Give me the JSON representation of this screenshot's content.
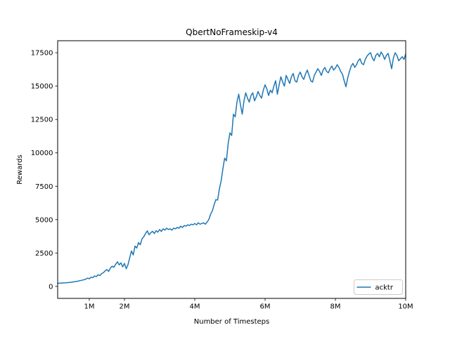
{
  "figure": {
    "background_color": "#ffffff",
    "spine_color": "#000000",
    "legend_border_color": "#cccccc",
    "legend_background_color": "#ffffff"
  },
  "chart_data": {
    "type": "line",
    "title": "QbertNoFrameskip-v4",
    "xlabel": "Number of Timesteps",
    "ylabel": "Rewards",
    "x_unit": "millions of timesteps",
    "xlim": [
      0.1,
      10
    ],
    "ylim": [
      -900,
      18400
    ],
    "grid": false,
    "xticks": [
      {
        "value": 1,
        "label": "1M"
      },
      {
        "value": 2,
        "label": "2M"
      },
      {
        "value": 4,
        "label": "4M"
      },
      {
        "value": 6,
        "label": "6M"
      },
      {
        "value": 8,
        "label": "8M"
      },
      {
        "value": 10,
        "label": "10M"
      }
    ],
    "yticks": [
      {
        "value": 0,
        "label": "0"
      },
      {
        "value": 2500,
        "label": "2500"
      },
      {
        "value": 5000,
        "label": "5000"
      },
      {
        "value": 7500,
        "label": "7500"
      },
      {
        "value": 10000,
        "label": "10000"
      },
      {
        "value": 12500,
        "label": "12500"
      },
      {
        "value": 15000,
        "label": "15000"
      },
      {
        "value": 17500,
        "label": "17500"
      }
    ],
    "legend": {
      "position": "lower right",
      "entries": [
        {
          "label": "acktr",
          "color": "#1f77b4"
        }
      ]
    },
    "series": [
      {
        "name": "acktr",
        "color": "#1f77b4",
        "points": [
          [
            0.1,
            230
          ],
          [
            0.18,
            240
          ],
          [
            0.26,
            255
          ],
          [
            0.34,
            270
          ],
          [
            0.42,
            290
          ],
          [
            0.5,
            315
          ],
          [
            0.58,
            345
          ],
          [
            0.66,
            385
          ],
          [
            0.74,
            430
          ],
          [
            0.82,
            480
          ],
          [
            0.9,
            540
          ],
          [
            0.95,
            620
          ],
          [
            1.0,
            570
          ],
          [
            1.05,
            690
          ],
          [
            1.1,
            650
          ],
          [
            1.15,
            780
          ],
          [
            1.2,
            730
          ],
          [
            1.25,
            870
          ],
          [
            1.3,
            810
          ],
          [
            1.35,
            960
          ],
          [
            1.4,
            1020
          ],
          [
            1.45,
            1160
          ],
          [
            1.5,
            1260
          ],
          [
            1.55,
            1120
          ],
          [
            1.6,
            1370
          ],
          [
            1.65,
            1510
          ],
          [
            1.7,
            1430
          ],
          [
            1.75,
            1660
          ],
          [
            1.8,
            1840
          ],
          [
            1.85,
            1610
          ],
          [
            1.9,
            1760
          ],
          [
            1.95,
            1460
          ],
          [
            2.0,
            1720
          ],
          [
            2.05,
            1320
          ],
          [
            2.1,
            1620
          ],
          [
            2.15,
            2150
          ],
          [
            2.2,
            2650
          ],
          [
            2.25,
            2350
          ],
          [
            2.3,
            3020
          ],
          [
            2.35,
            2870
          ],
          [
            2.4,
            3280
          ],
          [
            2.45,
            3120
          ],
          [
            2.5,
            3560
          ],
          [
            2.55,
            3720
          ],
          [
            2.6,
            3960
          ],
          [
            2.65,
            4160
          ],
          [
            2.7,
            3870
          ],
          [
            2.75,
            4020
          ],
          [
            2.8,
            4120
          ],
          [
            2.85,
            3960
          ],
          [
            2.9,
            4170
          ],
          [
            2.95,
            4060
          ],
          [
            3.0,
            4260
          ],
          [
            3.05,
            4110
          ],
          [
            3.1,
            4310
          ],
          [
            3.15,
            4210
          ],
          [
            3.2,
            4360
          ],
          [
            3.25,
            4260
          ],
          [
            3.3,
            4310
          ],
          [
            3.35,
            4210
          ],
          [
            3.4,
            4360
          ],
          [
            3.45,
            4310
          ],
          [
            3.5,
            4410
          ],
          [
            3.55,
            4360
          ],
          [
            3.6,
            4510
          ],
          [
            3.65,
            4410
          ],
          [
            3.7,
            4560
          ],
          [
            3.75,
            4510
          ],
          [
            3.8,
            4610
          ],
          [
            3.85,
            4560
          ],
          [
            3.9,
            4660
          ],
          [
            3.95,
            4610
          ],
          [
            4.0,
            4710
          ],
          [
            4.05,
            4610
          ],
          [
            4.1,
            4760
          ],
          [
            4.15,
            4660
          ],
          [
            4.2,
            4710
          ],
          [
            4.25,
            4760
          ],
          [
            4.3,
            4660
          ],
          [
            4.35,
            4810
          ],
          [
            4.4,
            5010
          ],
          [
            4.45,
            5400
          ],
          [
            4.5,
            5660
          ],
          [
            4.55,
            6110
          ],
          [
            4.6,
            6500
          ],
          [
            4.65,
            6460
          ],
          [
            4.7,
            7300
          ],
          [
            4.75,
            7900
          ],
          [
            4.8,
            8800
          ],
          [
            4.85,
            9600
          ],
          [
            4.9,
            9400
          ],
          [
            4.95,
            10700
          ],
          [
            5.0,
            11500
          ],
          [
            5.05,
            11300
          ],
          [
            5.1,
            12900
          ],
          [
            5.15,
            12700
          ],
          [
            5.2,
            13800
          ],
          [
            5.25,
            14400
          ],
          [
            5.3,
            13600
          ],
          [
            5.35,
            12900
          ],
          [
            5.4,
            13900
          ],
          [
            5.45,
            14500
          ],
          [
            5.5,
            14100
          ],
          [
            5.55,
            13800
          ],
          [
            5.6,
            14300
          ],
          [
            5.65,
            14500
          ],
          [
            5.7,
            13900
          ],
          [
            5.75,
            14200
          ],
          [
            5.8,
            14600
          ],
          [
            5.85,
            14300
          ],
          [
            5.9,
            14100
          ],
          [
            5.95,
            14700
          ],
          [
            6.0,
            15100
          ],
          [
            6.05,
            14800
          ],
          [
            6.1,
            14300
          ],
          [
            6.15,
            14700
          ],
          [
            6.2,
            14500
          ],
          [
            6.25,
            15000
          ],
          [
            6.3,
            15400
          ],
          [
            6.35,
            14400
          ],
          [
            6.4,
            15100
          ],
          [
            6.45,
            15700
          ],
          [
            6.5,
            15300
          ],
          [
            6.55,
            15000
          ],
          [
            6.6,
            15800
          ],
          [
            6.65,
            15500
          ],
          [
            6.7,
            15200
          ],
          [
            6.75,
            15700
          ],
          [
            6.8,
            15950
          ],
          [
            6.85,
            15400
          ],
          [
            6.9,
            15300
          ],
          [
            6.95,
            15800
          ],
          [
            7.0,
            16050
          ],
          [
            7.05,
            15700
          ],
          [
            7.1,
            15500
          ],
          [
            7.15,
            15900
          ],
          [
            7.2,
            16200
          ],
          [
            7.25,
            15800
          ],
          [
            7.3,
            15400
          ],
          [
            7.35,
            15300
          ],
          [
            7.4,
            15800
          ],
          [
            7.45,
            16050
          ],
          [
            7.5,
            16300
          ],
          [
            7.55,
            16100
          ],
          [
            7.6,
            15800
          ],
          [
            7.65,
            16200
          ],
          [
            7.7,
            16400
          ],
          [
            7.75,
            16100
          ],
          [
            7.8,
            16000
          ],
          [
            7.85,
            16300
          ],
          [
            7.9,
            16500
          ],
          [
            7.95,
            16200
          ],
          [
            8.0,
            16350
          ],
          [
            8.05,
            16600
          ],
          [
            8.1,
            16400
          ],
          [
            8.15,
            16100
          ],
          [
            8.2,
            15900
          ],
          [
            8.25,
            15400
          ],
          [
            8.3,
            14950
          ],
          [
            8.35,
            15600
          ],
          [
            8.4,
            16100
          ],
          [
            8.45,
            16500
          ],
          [
            8.5,
            16700
          ],
          [
            8.55,
            16400
          ],
          [
            8.6,
            16600
          ],
          [
            8.65,
            16900
          ],
          [
            8.7,
            17050
          ],
          [
            8.75,
            16700
          ],
          [
            8.8,
            16600
          ],
          [
            8.85,
            17000
          ],
          [
            8.9,
            17250
          ],
          [
            8.95,
            17400
          ],
          [
            9.0,
            17500
          ],
          [
            9.05,
            17100
          ],
          [
            9.1,
            16900
          ],
          [
            9.15,
            17300
          ],
          [
            9.2,
            17450
          ],
          [
            9.25,
            17200
          ],
          [
            9.3,
            17550
          ],
          [
            9.35,
            17350
          ],
          [
            9.4,
            17000
          ],
          [
            9.45,
            17300
          ],
          [
            9.5,
            17450
          ],
          [
            9.55,
            16900
          ],
          [
            9.6,
            16300
          ],
          [
            9.65,
            17100
          ],
          [
            9.7,
            17500
          ],
          [
            9.75,
            17300
          ],
          [
            9.8,
            16900
          ],
          [
            9.85,
            17050
          ],
          [
            9.9,
            17200
          ],
          [
            9.95,
            17000
          ],
          [
            10.0,
            17400
          ]
        ]
      }
    ]
  }
}
